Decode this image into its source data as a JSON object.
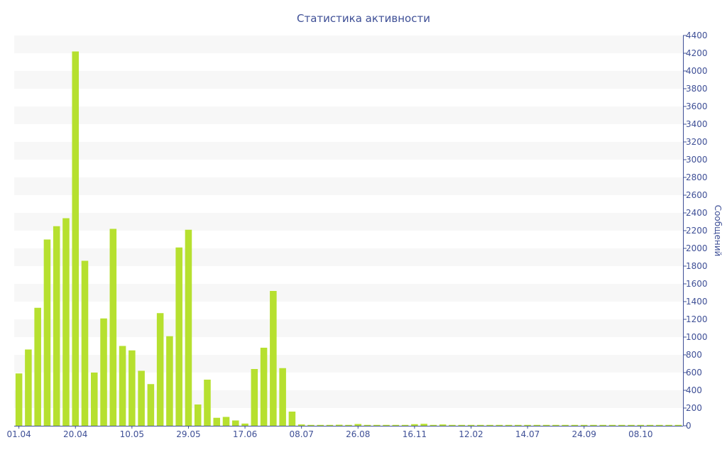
{
  "chart_data": {
    "type": "bar",
    "title": "Статистика активности",
    "ylabel": "Сообщений",
    "xlabel": "",
    "ylim": [
      0,
      4400
    ],
    "y_ticks": [
      0,
      200,
      400,
      600,
      800,
      1000,
      1200,
      1400,
      1600,
      1800,
      2000,
      2200,
      2400,
      2600,
      2800,
      3000,
      3200,
      3400,
      3600,
      3800,
      4000,
      4200,
      4400
    ],
    "y_axis_position": "right",
    "grid": "alternating horizontal bands",
    "x_tick_labels": [
      {
        "label": "01.04",
        "index": 0
      },
      {
        "label": "20.04",
        "index": 6
      },
      {
        "label": "10.05",
        "index": 12
      },
      {
        "label": "29.05",
        "index": 18
      },
      {
        "label": "17.06",
        "index": 24
      },
      {
        "label": "08.07",
        "index": 30
      },
      {
        "label": "26.08",
        "index": 36
      },
      {
        "label": "16.11",
        "index": 42
      },
      {
        "label": "12.02",
        "index": 48
      },
      {
        "label": "14.07",
        "index": 54
      },
      {
        "label": "24.09",
        "index": 60
      },
      {
        "label": "08.10",
        "index": 66
      }
    ],
    "values": [
      590,
      860,
      1330,
      2100,
      2250,
      2340,
      4220,
      1860,
      600,
      1210,
      2220,
      900,
      850,
      620,
      470,
      1270,
      1010,
      2010,
      2210,
      240,
      520,
      90,
      100,
      60,
      25,
      640,
      880,
      1520,
      650,
      160,
      15,
      10,
      10,
      10,
      12,
      10,
      20,
      10,
      10,
      10,
      10,
      10,
      18,
      22,
      10,
      15,
      10,
      10,
      10,
      10,
      10,
      10,
      10,
      10,
      10,
      10,
      10,
      10,
      10,
      10,
      10,
      10,
      10,
      10,
      10,
      10,
      10,
      10,
      10,
      10,
      10
    ],
    "colors": {
      "bar": "#b6e02f",
      "axis": "#3e4f96",
      "title": "#3e4f96",
      "band": "#f7f7f7"
    }
  }
}
